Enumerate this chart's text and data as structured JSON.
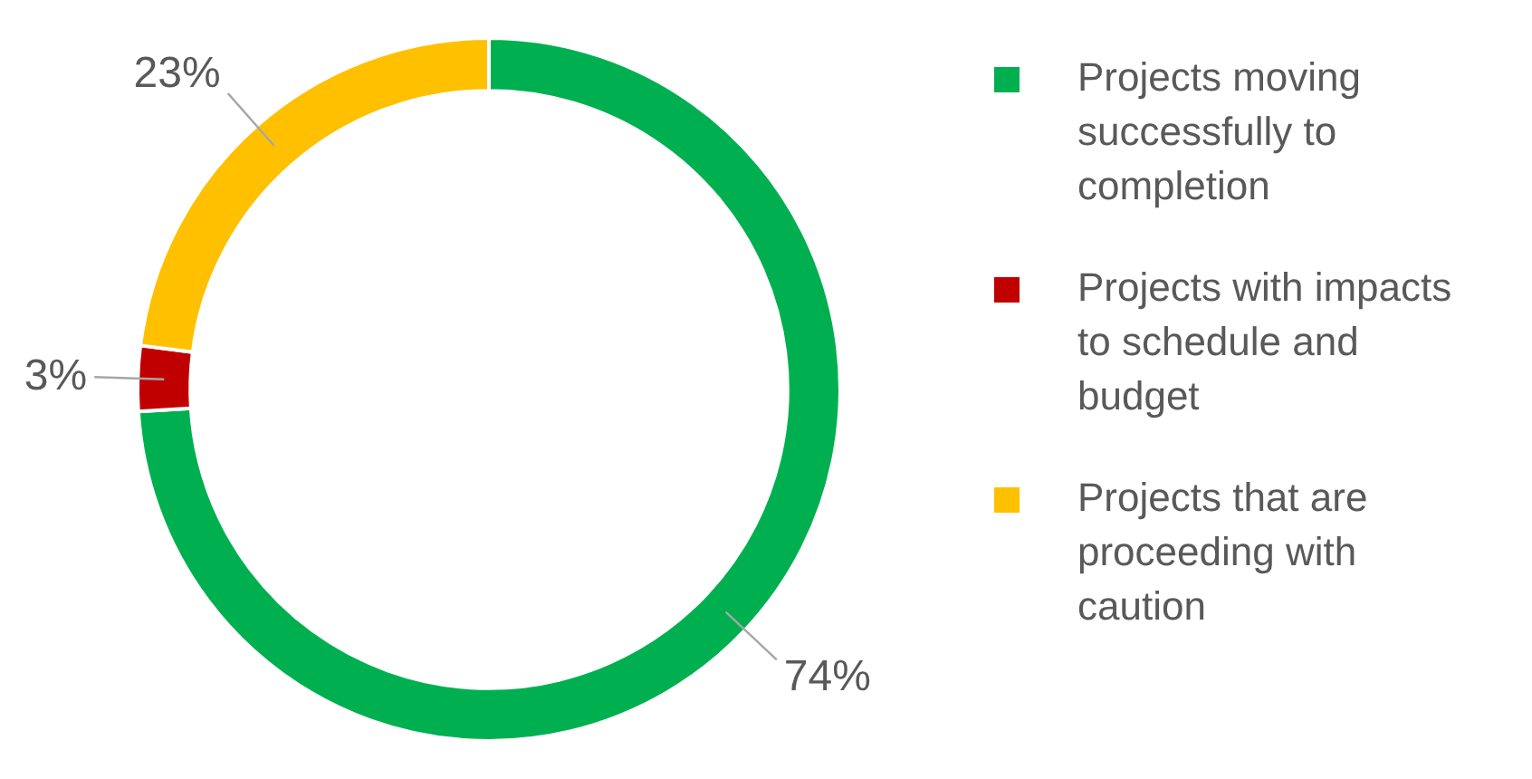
{
  "chart_data": {
    "type": "donut",
    "categories": [
      "Projects moving successfully to completion",
      "Projects with impacts to schedule and budget",
      "Projects that are proceeding with caution"
    ],
    "values": [
      74,
      3,
      23
    ],
    "colors": [
      "#00b050",
      "#c00000",
      "#ffc000"
    ],
    "value_labels": [
      "74%",
      "3%",
      "23%"
    ],
    "legend": "right"
  }
}
